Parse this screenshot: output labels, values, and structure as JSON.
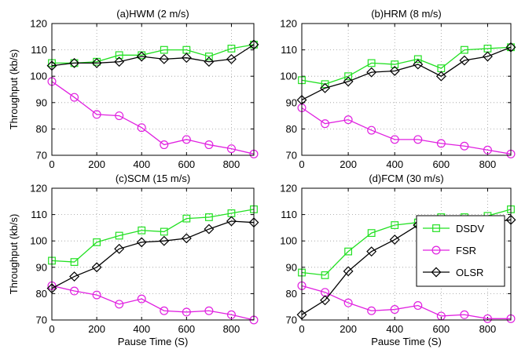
{
  "chart_data": [
    {
      "type": "line",
      "title": "(a)HWM (2 m/s)",
      "xlabel": "",
      "ylabel": "Throughput (kb/s)",
      "xlim": [
        0,
        900
      ],
      "ylim": [
        70,
        120
      ],
      "xticks": [
        "0",
        "200",
        "400",
        "600",
        "800"
      ],
      "yticks": [
        "70",
        "80",
        "90",
        "100",
        "110",
        "120"
      ],
      "grid": true,
      "x": [
        0,
        100,
        200,
        300,
        400,
        500,
        600,
        700,
        800,
        900
      ],
      "series": [
        {
          "name": "DSDV",
          "values": [
            105,
            105,
            105.5,
            108,
            108,
            110,
            110,
            107.5,
            110.5,
            112
          ],
          "color": "#22e022",
          "marker": "square"
        },
        {
          "name": "FSR",
          "values": [
            98,
            92,
            85.5,
            85,
            80.5,
            74,
            76,
            74,
            72.5,
            70.5
          ],
          "color": "#e020e0",
          "marker": "circle"
        },
        {
          "name": "OLSR",
          "values": [
            104,
            105,
            105,
            105.5,
            107.5,
            106.5,
            107,
            105.5,
            106.5,
            112
          ],
          "color": "#000000",
          "marker": "diamond"
        }
      ]
    },
    {
      "type": "line",
      "title": "(b)HRM (8 m/s)",
      "xlabel": "",
      "ylabel": "",
      "xlim": [
        0,
        900
      ],
      "ylim": [
        70,
        120
      ],
      "xticks": [
        "0",
        "200",
        "400",
        "600",
        "800"
      ],
      "yticks": [
        "70",
        "80",
        "90",
        "100",
        "110",
        "120"
      ],
      "grid": true,
      "x": [
        0,
        100,
        200,
        300,
        400,
        500,
        600,
        700,
        800,
        900
      ],
      "series": [
        {
          "name": "DSDV",
          "values": [
            98.5,
            97,
            100,
            105,
            104.5,
            106.5,
            103,
            110,
            110.5,
            111
          ],
          "color": "#22e022",
          "marker": "square"
        },
        {
          "name": "FSR",
          "values": [
            88,
            82,
            83.5,
            79.5,
            76,
            76,
            74.5,
            73.5,
            72,
            70.5
          ],
          "color": "#e020e0",
          "marker": "circle"
        },
        {
          "name": "OLSR",
          "values": [
            91,
            95.5,
            98,
            101.5,
            102,
            104.5,
            100,
            106,
            107.5,
            111
          ],
          "color": "#000000",
          "marker": "diamond"
        }
      ]
    },
    {
      "type": "line",
      "title": "(c)SCM (15 m/s)",
      "xlabel": "Pause Time (S)",
      "ylabel": "Throughput (kb/s)",
      "xlim": [
        0,
        900
      ],
      "ylim": [
        70,
        120
      ],
      "xticks": [
        "0",
        "200",
        "400",
        "600",
        "800"
      ],
      "yticks": [
        "70",
        "80",
        "90",
        "100",
        "110",
        "120"
      ],
      "grid": true,
      "x": [
        0,
        100,
        200,
        300,
        400,
        500,
        600,
        700,
        800,
        900
      ],
      "series": [
        {
          "name": "DSDV",
          "values": [
            92.5,
            92,
            99.5,
            102,
            104,
            103.5,
            108.5,
            109,
            110.5,
            112
          ],
          "color": "#22e022",
          "marker": "square"
        },
        {
          "name": "FSR",
          "values": [
            83,
            81,
            79.5,
            76,
            78,
            73.5,
            73,
            73.5,
            72,
            70
          ],
          "color": "#e020e0",
          "marker": "circle"
        },
        {
          "name": "OLSR",
          "values": [
            82,
            86.5,
            90,
            97,
            99.5,
            100,
            101,
            104.5,
            107.5,
            107
          ],
          "color": "#000000",
          "marker": "diamond"
        }
      ]
    },
    {
      "type": "line",
      "title": "(d)FCM (30 m/s)",
      "xlabel": "Pause Time (S)",
      "ylabel": "",
      "xlim": [
        0,
        900
      ],
      "ylim": [
        70,
        120
      ],
      "xticks": [
        "0",
        "200",
        "400",
        "600",
        "800"
      ],
      "yticks": [
        "70",
        "80",
        "90",
        "100",
        "110",
        "120"
      ],
      "grid": true,
      "legend": "right",
      "x": [
        0,
        100,
        200,
        300,
        400,
        500,
        600,
        700,
        800,
        900
      ],
      "series": [
        {
          "name": "DSDV",
          "values": [
            88,
            87,
            96,
            103,
            106,
            107,
            109,
            109,
            109.5,
            112
          ],
          "color": "#22e022",
          "marker": "square"
        },
        {
          "name": "FSR",
          "values": [
            83,
            80.5,
            76.5,
            73.5,
            74,
            75.5,
            71.5,
            72,
            70.5,
            70.5
          ],
          "color": "#e020e0",
          "marker": "circle"
        },
        {
          "name": "OLSR",
          "values": [
            72,
            77.5,
            88.5,
            96,
            100.5,
            106,
            107,
            107,
            107,
            108
          ],
          "color": "#000000",
          "marker": "diamond"
        }
      ]
    }
  ]
}
